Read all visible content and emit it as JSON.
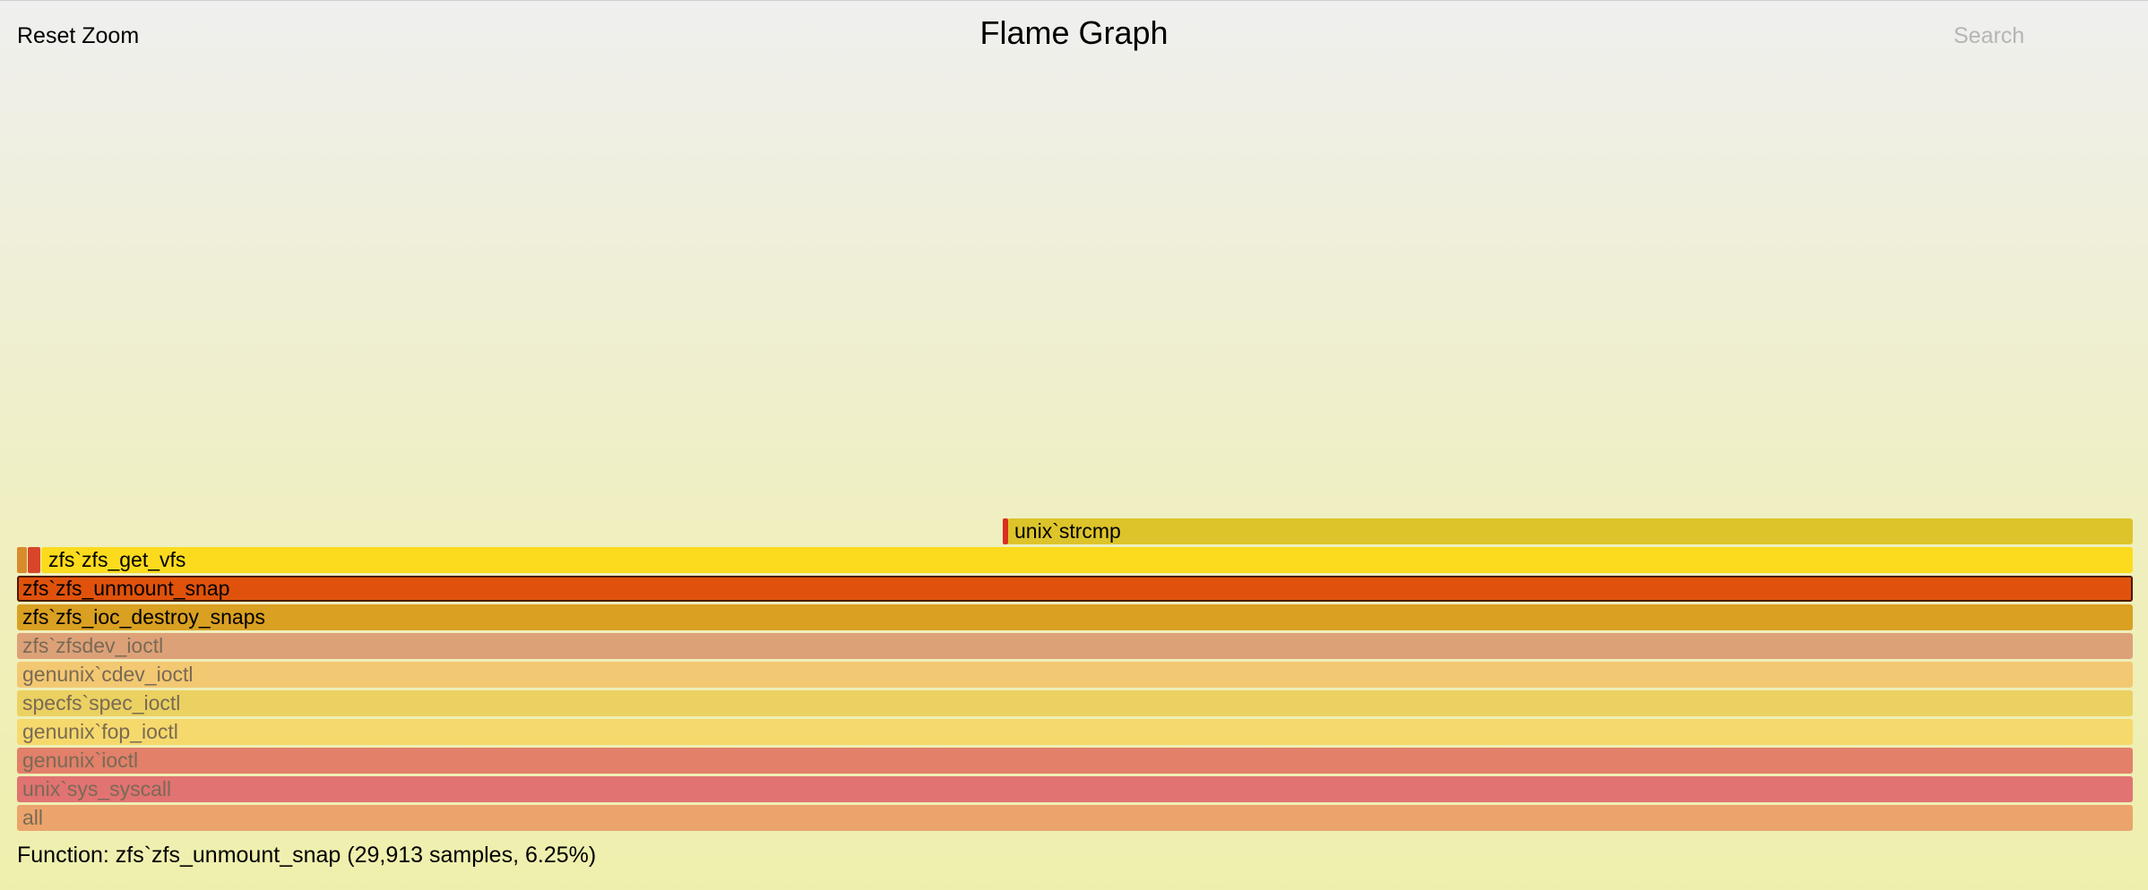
{
  "header": {
    "reset_zoom_label": "Reset Zoom",
    "title": "Flame Graph",
    "search_label": "Search"
  },
  "status": {
    "text": "Function: zfs`zfs_unmount_snap (29,913 samples, 6.25%)"
  },
  "frames": [
    {
      "id": "unix-strcmp",
      "label": "unix`strcmp",
      "color": "#ddc42b",
      "text": "bright"
    },
    {
      "id": "zfs-get-vfs",
      "label": "zfs`zfs_get_vfs",
      "color": "#fcdb1e",
      "text": "bright"
    },
    {
      "id": "zfs-unmount-snap",
      "label": "zfs`zfs_unmount_snap",
      "color": "#e0520b",
      "text": "bright",
      "selected": true
    },
    {
      "id": "zfs-ioc-destroy-snaps",
      "label": "zfs`zfs_ioc_destroy_snaps",
      "color": "#d9a021",
      "text": "bright"
    },
    {
      "id": "zfs-zfsdev-ioctl",
      "label": "zfs`zfsdev_ioctl",
      "color": "#dda178",
      "text": "dim"
    },
    {
      "id": "genunix-cdev-ioctl",
      "label": "genunix`cdev_ioctl",
      "color": "#f3c872",
      "text": "dim"
    },
    {
      "id": "specfs-spec-ioctl",
      "label": "specfs`spec_ioctl",
      "color": "#ead161",
      "text": "dim"
    },
    {
      "id": "genunix-fop-ioctl",
      "label": "genunix`fop_ioctl",
      "color": "#f5d96c",
      "text": "dim"
    },
    {
      "id": "genunix-ioctl",
      "label": "genunix`ioctl",
      "color": "#e2806a",
      "text": "dim"
    },
    {
      "id": "unix-sys-syscall",
      "label": "unix`sys_syscall",
      "color": "#e17372",
      "text": "dim"
    },
    {
      "id": "all",
      "label": "all",
      "color": "#eba46c",
      "text": "dim"
    }
  ],
  "mini_frames": [
    {
      "id": "strcmp-child",
      "color": "#d92f1f"
    },
    {
      "id": "get-vfs-child-1",
      "color": "#d98c2b"
    },
    {
      "id": "get-vfs-child-2",
      "color": "#d9452a"
    }
  ]
}
